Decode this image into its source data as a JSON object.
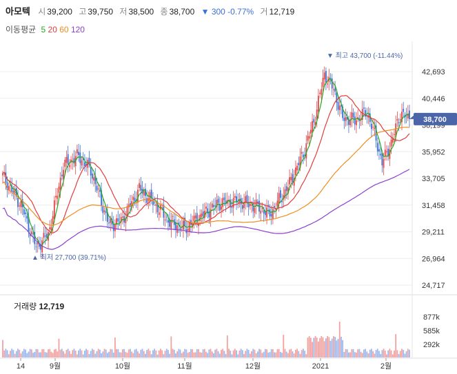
{
  "header": {
    "name": "아모텍",
    "open_label": "시",
    "open": "39,200",
    "high_label": "고",
    "high": "39,750",
    "low_label": "저",
    "low": "38,500",
    "close_label": "종",
    "close": "38,700",
    "change": "▼ 300 -0.77%",
    "volume_label": "거",
    "volume": "12,719"
  },
  "ma_legend": {
    "title": "이동평균",
    "items": [
      {
        "label": "5",
        "color": "#22aa22"
      },
      {
        "label": "20",
        "color": "#e03c3c"
      },
      {
        "label": "60",
        "color": "#f08c1e"
      },
      {
        "label": "120",
        "color": "#8a3fd1"
      }
    ]
  },
  "volume_title": {
    "label": "거래량",
    "value": "12,719"
  },
  "chart_data": {
    "type": "candlestick",
    "price_ticks": [
      "42,693",
      "40,446",
      "38,199",
      "35,952",
      "33,705",
      "31,458",
      "29,211",
      "26,964",
      "24,717"
    ],
    "price_tick_values": [
      42693,
      40446,
      38199,
      35952,
      33705,
      31458,
      29211,
      26964,
      24717
    ],
    "current_price": "38,700",
    "max_label": "최고 43,700 (-11.44%)",
    "min_label": "최저 27,700 (39.71%)",
    "volume_ticks": [
      "877k",
      "585k",
      "292k"
    ],
    "x_ticks": [
      "14",
      "9월",
      "10월",
      "11월",
      "12월",
      "2021",
      "2월"
    ],
    "colors": {
      "up": "#e64545",
      "down": "#3d6fd6",
      "ma5": "#22aa22",
      "ma20": "#e03c3c",
      "ma60": "#f08c1e",
      "ma120": "#8a3fd1",
      "vol_up": "#f2a1a1",
      "vol_down": "#9cb8ec",
      "badge": "#4a66a8"
    }
  }
}
